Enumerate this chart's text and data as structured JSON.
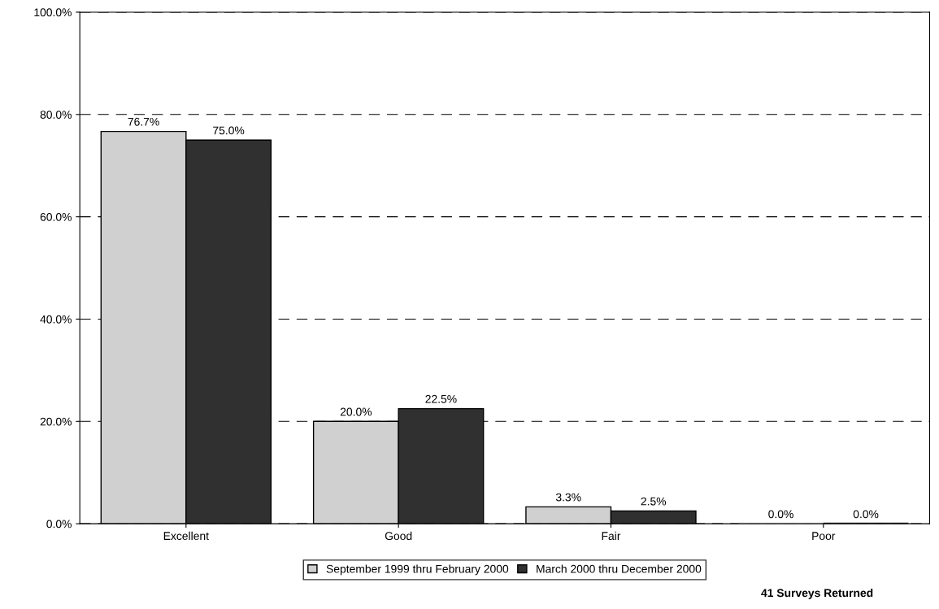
{
  "chart_data": {
    "type": "bar",
    "categories": [
      "Excellent",
      "Good",
      "Fair",
      "Poor"
    ],
    "series": [
      {
        "name": "September 1999 thru February 2000",
        "color": "#d0d0d0",
        "values": [
          76.7,
          20.0,
          3.3,
          0.0
        ],
        "value_labels": [
          "76.7%",
          "20.0%",
          "3.3%",
          "0.0%"
        ]
      },
      {
        "name": "March 2000 thru December 2000",
        "color": "#303030",
        "values": [
          75.0,
          22.5,
          2.5,
          0.0
        ],
        "value_labels": [
          "75.0%",
          "22.5%",
          "2.5%",
          "0.0%"
        ]
      }
    ],
    "ylim": [
      0,
      100
    ],
    "yticks": [
      {
        "value": 0,
        "label": "0.0%"
      },
      {
        "value": 20,
        "label": "20.0%"
      },
      {
        "value": 40,
        "label": "40.0%"
      },
      {
        "value": 60,
        "label": "60.0%"
      },
      {
        "value": 80,
        "label": "80.0%"
      },
      {
        "value": 100,
        "label": "100.0%"
      }
    ],
    "grid": "y",
    "line_style": "dashed",
    "legend": "bottom",
    "annotations": [
      "41 Surveys Returned"
    ]
  }
}
